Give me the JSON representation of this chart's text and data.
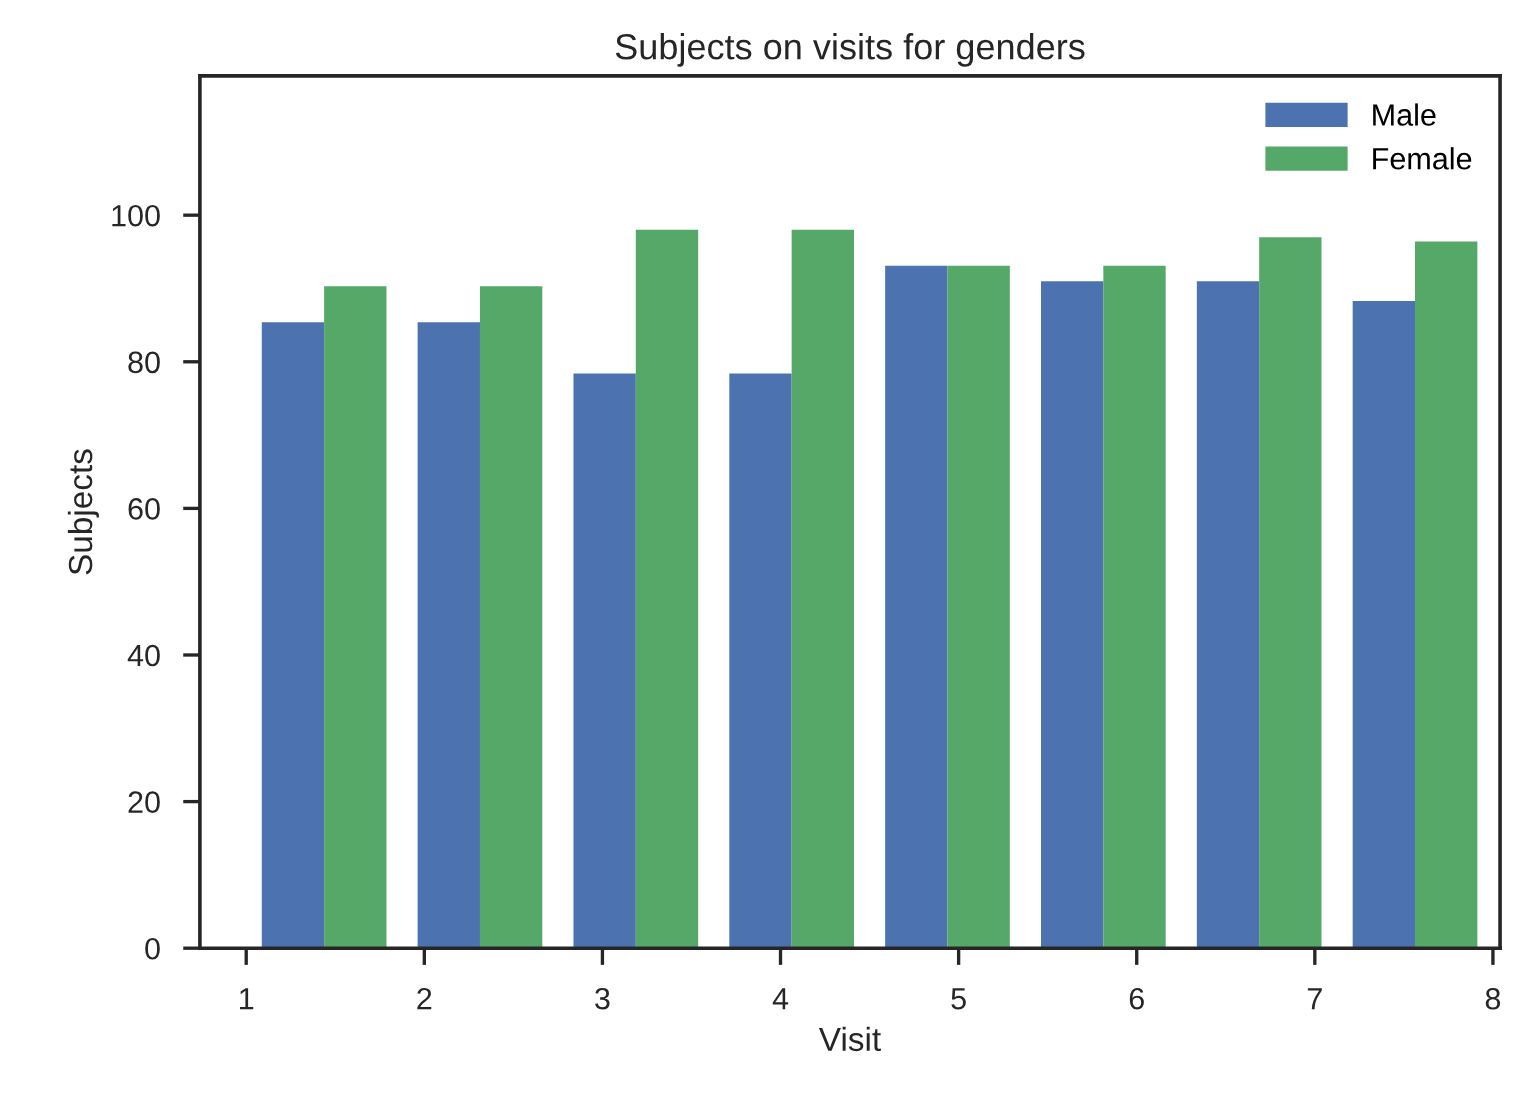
{
  "chart_data": {
    "type": "histogram",
    "title": "Subjects on visits for genders",
    "xlabel": "Visit",
    "ylabel": "Subjects",
    "bins": [
      1,
      1.875,
      2.75,
      3.625,
      4.5,
      5.375,
      6.25,
      7.125,
      8
    ],
    "series": [
      {
        "name": "Male",
        "color": "#4c72b0",
        "values": [
          85.4,
          85.4,
          78.4,
          78.4,
          93.1,
          91.0,
          91.0,
          88.3
        ]
      },
      {
        "name": "Female",
        "color": "#55a868",
        "values": [
          90.3,
          90.3,
          98.0,
          98.0,
          93.1,
          93.1,
          97.0,
          96.4
        ]
      }
    ],
    "xlim": [
      0.74,
      8.04
    ],
    "xticks": [
      1,
      2,
      3,
      4,
      5,
      6,
      7,
      8
    ],
    "ylim": [
      0,
      119
    ],
    "yticks": [
      0,
      20,
      40,
      60,
      80,
      100
    ],
    "grid": false,
    "legend": "top right"
  }
}
